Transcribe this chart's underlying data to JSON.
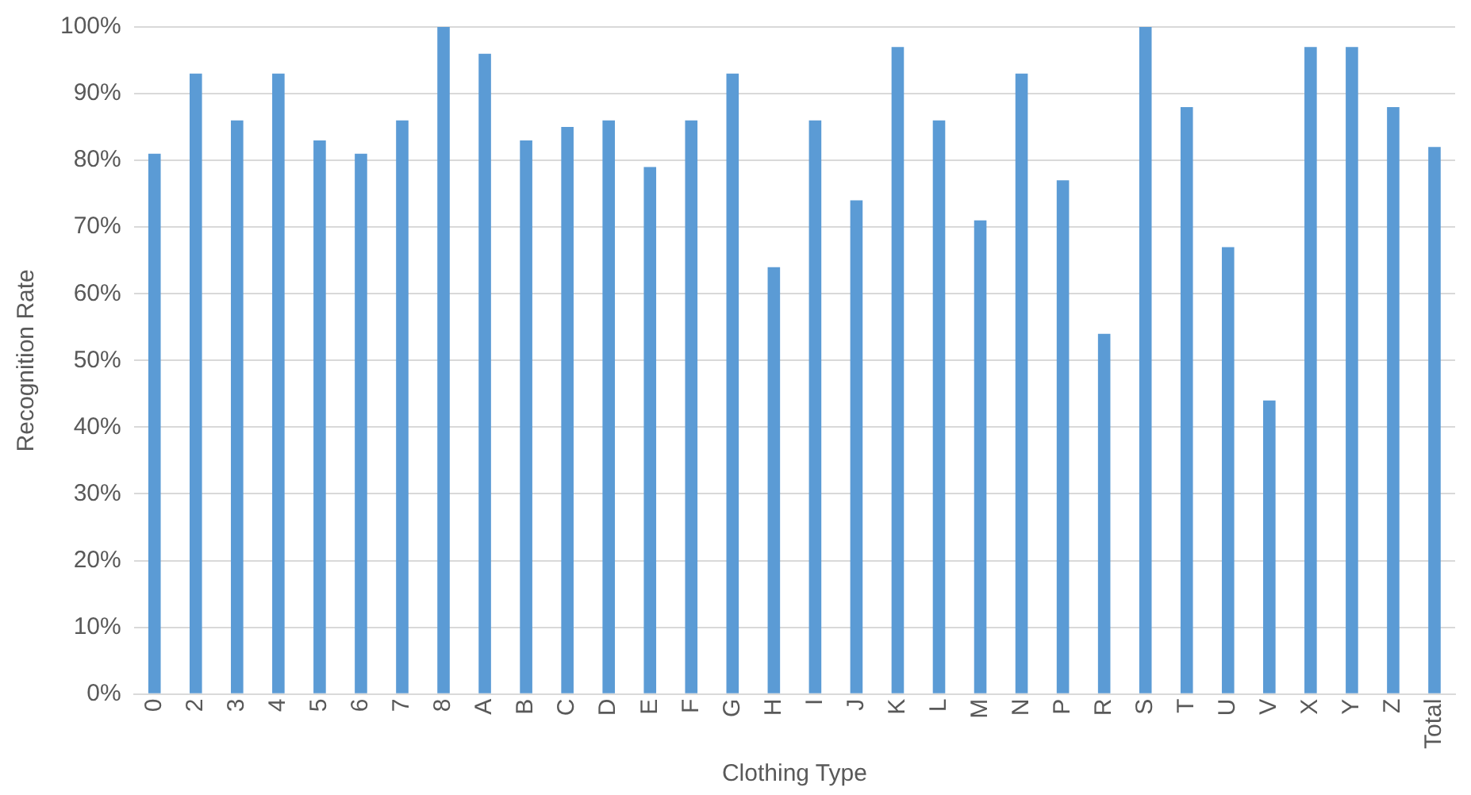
{
  "chart_data": {
    "type": "bar",
    "xlabel": "Clothing Type",
    "ylabel": "Recognition Rate",
    "categories": [
      "0",
      "2",
      "3",
      "4",
      "5",
      "6",
      "7",
      "8",
      "A",
      "B",
      "C",
      "D",
      "E",
      "F",
      "G",
      "H",
      "I",
      "J",
      "K",
      "L",
      "M",
      "N",
      "P",
      "R",
      "S",
      "T",
      "U",
      "V",
      "X",
      "Y",
      "Z",
      "Total"
    ],
    "values": [
      81,
      93,
      86,
      93,
      83,
      81,
      86,
      100,
      96,
      83,
      85,
      86,
      79,
      86,
      93,
      64,
      86,
      74,
      97,
      86,
      71,
      93,
      77,
      54,
      100,
      88,
      67,
      44,
      97,
      97,
      88,
      82
    ],
    "color": "#5b9bd5",
    "ylim": [
      0,
      100
    ],
    "yticks": [
      {
        "value": 0,
        "label": "0%"
      },
      {
        "value": 10,
        "label": "10%"
      },
      {
        "value": 20,
        "label": "20%"
      },
      {
        "value": 30,
        "label": "30%"
      },
      {
        "value": 40,
        "label": "40%"
      },
      {
        "value": 50,
        "label": "50%"
      },
      {
        "value": 60,
        "label": "60%"
      },
      {
        "value": 70,
        "label": "70%"
      },
      {
        "value": 80,
        "label": "80%"
      },
      {
        "value": 90,
        "label": "90%"
      },
      {
        "value": 100,
        "label": "100%"
      }
    ],
    "grid": "y"
  }
}
